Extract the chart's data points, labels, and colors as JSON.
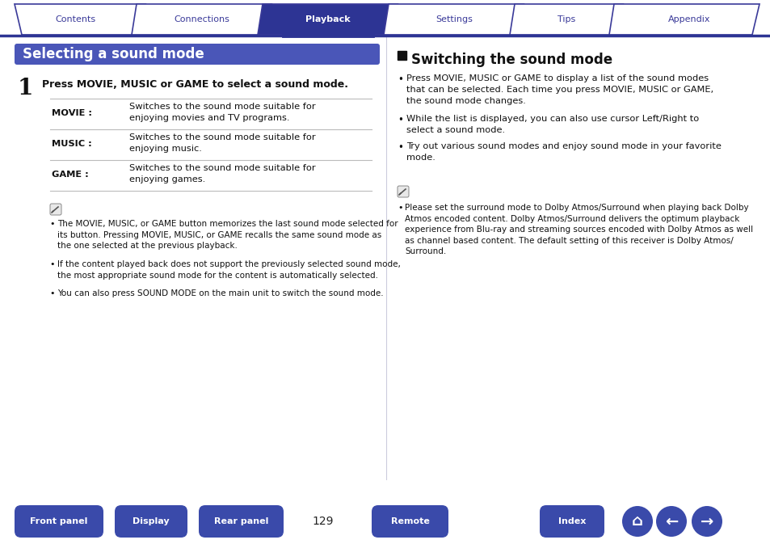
{
  "bg_color": "#ffffff",
  "border_color": "#3a3a99",
  "tab_bg_active": "#2d3494",
  "tab_bg_inactive": "#ffffff",
  "tab_text_active": "#ffffff",
  "tab_text_inactive": "#3a3a99",
  "tabs": [
    "Contents",
    "Connections",
    "Playback",
    "Settings",
    "Tips",
    "Appendix"
  ],
  "active_tab": 2,
  "header_line_color": "#2d3494",
  "left_title_bg": "#4a56b8",
  "left_title_text": "Selecting a sound mode",
  "left_title_text_color": "#ffffff",
  "step_text": "Press MOVIE, MUSIC or GAME to select a sound mode.",
  "table_rows": [
    [
      "MOVIE :",
      "Switches to the sound mode suitable for\nenjoying movies and TV programs."
    ],
    [
      "MUSIC :",
      "Switches to the sound mode suitable for\nenjoying music."
    ],
    [
      "GAME :",
      "Switches to the sound mode suitable for\nenjoying games."
    ]
  ],
  "note_bullets_left": [
    "The MOVIE, MUSIC, or GAME button memorizes the last sound mode selected for\nits button. Pressing MOVIE, MUSIC, or GAME recalls the same sound mode as\nthe one selected at the previous playback.",
    "If the content played back does not support the previously selected sound mode,\nthe most appropriate sound mode for the content is automatically selected.",
    "You can also press SOUND MODE on the main unit to switch the sound mode."
  ],
  "right_section_title": "Switching the sound mode",
  "right_bullets": [
    "Press MOVIE, MUSIC or GAME to display a list of the sound modes\nthat can be selected. Each time you press MOVIE, MUSIC or GAME,\nthe sound mode changes.",
    "While the list is displayed, you can also use cursor Left/Right to\nselect a sound mode.",
    "Try out various sound modes and enjoy sound mode in your favorite\nmode."
  ],
  "right_note": "Please set the surround mode to Dolby Atmos/Surround when playing back Dolby\nAtmos encoded content. Dolby Atmos/Surround delivers the optimum playback\nexperience from Blu-ray and streaming sources encoded with Dolby Atmos as well\nas channel based content. The default setting of this receiver is Dolby Atmos/\nSurround.",
  "bottom_buttons": [
    "Front panel",
    "Display",
    "Rear panel",
    "Remote",
    "Index"
  ],
  "page_number": "129",
  "button_bg_color": "#3a4aaa",
  "button_text_color": "#ffffff",
  "divider_color": "#ccccdd",
  "tab_line_color": "#2d3494"
}
